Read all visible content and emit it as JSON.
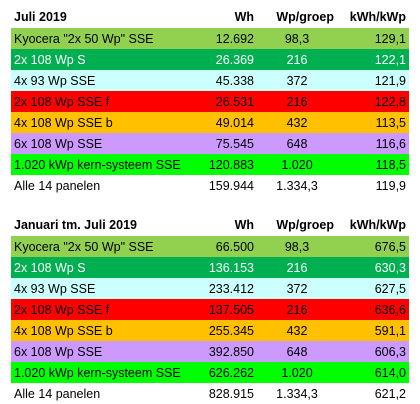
{
  "tables": [
    {
      "header": {
        "label": "Juli 2019",
        "wh": "Wh",
        "wp": "Wp/groep",
        "kwh": "kWh/kWp"
      },
      "rows": [
        {
          "label": "Kyocera \"2x 50 Wp\" SSE",
          "wh": "12.692",
          "wp": "98,3",
          "kwh": "129,1",
          "bg": "#92d050",
          "fg": "#000000"
        },
        {
          "label": "2x 108 Wp S",
          "wh": "26.369",
          "wp": "216",
          "kwh": "122,1",
          "bg": "#00b050",
          "fg": "#ffffff"
        },
        {
          "label": "4x 93 Wp SSE",
          "wh": "45.338",
          "wp": "372",
          "kwh": "121,9",
          "bg": "#ccffff",
          "fg": "#000000"
        },
        {
          "label": "2x 108 Wp SSE f",
          "wh": "26.531",
          "wp": "216",
          "kwh": "122,8",
          "bg": "#ff0000",
          "fg": "#000000"
        },
        {
          "label": "4x 108 Wp SSE b",
          "wh": "49.014",
          "wp": "432",
          "kwh": "113,5",
          "bg": "#ffc000",
          "fg": "#000000"
        },
        {
          "label": "6x 108 Wp SSE",
          "wh": "75.545",
          "wp": "648",
          "kwh": "116,6",
          "bg": "#cc99ff",
          "fg": "#000000"
        },
        {
          "label": "1.020 kWp kern-systeem SSE",
          "wh": "120.883",
          "wp": "1.020",
          "kwh": "118,5",
          "bg": "#00ff00",
          "fg": "#000000"
        },
        {
          "label": "Alle 14 panelen",
          "wh": "159.944",
          "wp": "1.334,3",
          "kwh": "119,9",
          "bg": "#ffffff",
          "fg": "#000000"
        }
      ]
    },
    {
      "header": {
        "label": "Januari tm. Juli 2019",
        "wh": "Wh",
        "wp": "Wp/groep",
        "kwh": "kWh/kWp"
      },
      "rows": [
        {
          "label": "Kyocera \"2x 50 Wp\" SSE",
          "wh": "66.500",
          "wp": "98,3",
          "kwh": "676,5",
          "bg": "#92d050",
          "fg": "#000000"
        },
        {
          "label": "2x 108 Wp S",
          "wh": "136.153",
          "wp": "216",
          "kwh": "630,3",
          "bg": "#00b050",
          "fg": "#ffffff"
        },
        {
          "label": "4x 93 Wp SSE",
          "wh": "233.412",
          "wp": "372",
          "kwh": "627,5",
          "bg": "#ccffff",
          "fg": "#000000"
        },
        {
          "label": "2x 108 Wp SSE f",
          "wh": "137.505",
          "wp": "216",
          "kwh": "636,6",
          "bg": "#ff0000",
          "fg": "#000000"
        },
        {
          "label": "4x 108 Wp SSE b",
          "wh": "255.345",
          "wp": "432",
          "kwh": "591,1",
          "bg": "#ffc000",
          "fg": "#000000"
        },
        {
          "label": "6x 108 Wp SSE",
          "wh": "392.850",
          "wp": "648",
          "kwh": "606,3",
          "bg": "#cc99ff",
          "fg": "#000000"
        },
        {
          "label": "1.020 kWp kern-systeem SSE",
          "wh": "626.262",
          "wp": "1.020",
          "kwh": "614,0",
          "bg": "#00ff00",
          "fg": "#000000"
        },
        {
          "label": "Alle 14 panelen",
          "wh": "828.915",
          "wp": "1.334,3",
          "kwh": "621,2",
          "bg": "#ffffff",
          "fg": "#000000"
        }
      ]
    }
  ]
}
